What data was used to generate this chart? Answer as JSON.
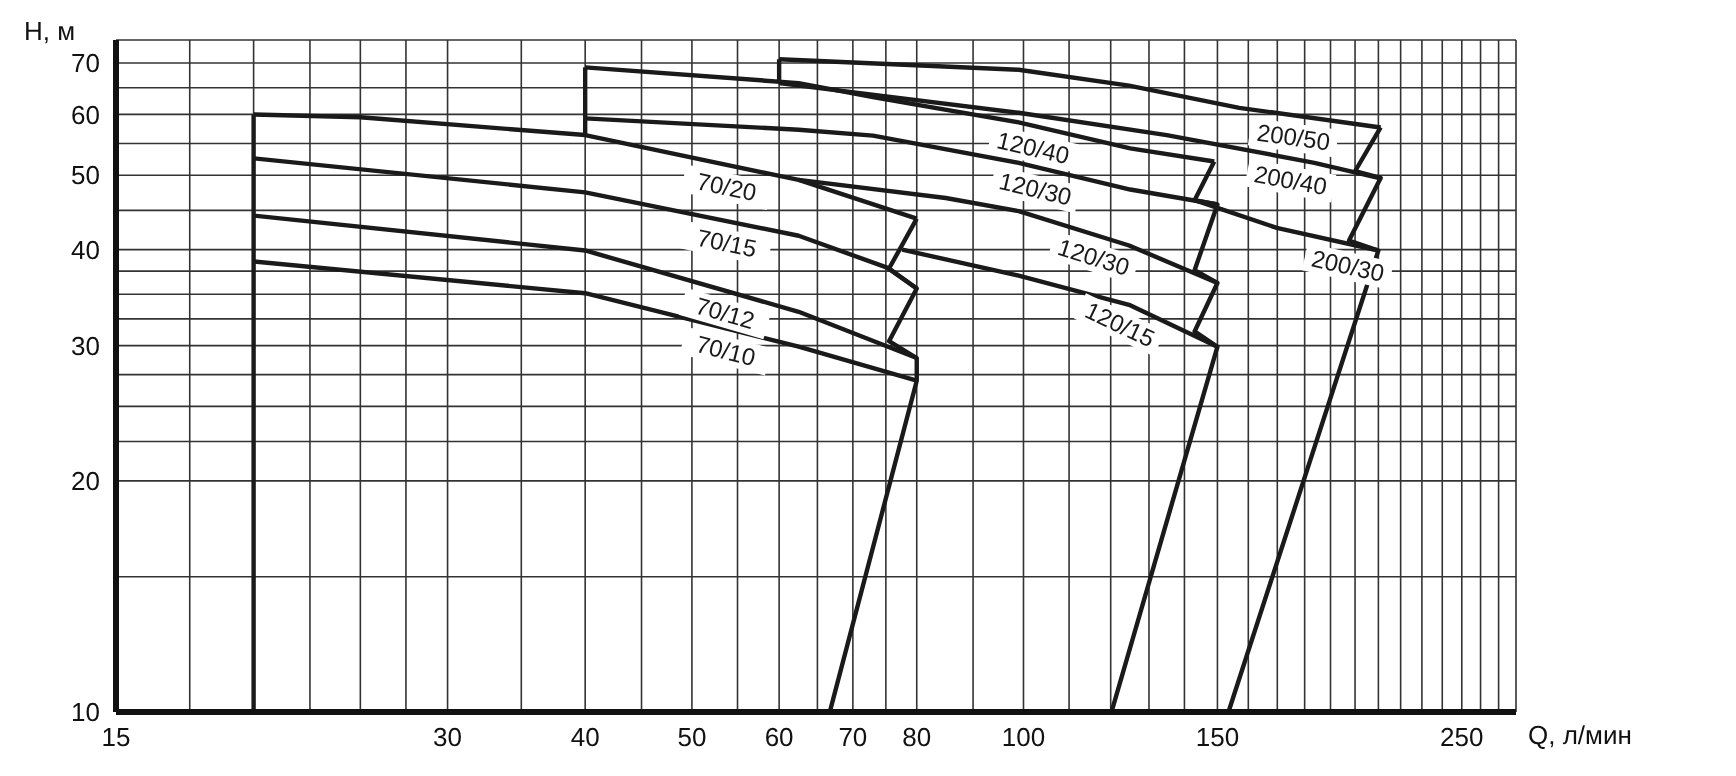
{
  "chart_data": {
    "type": "line",
    "xlabel": "Q, л/мин",
    "ylabel": "H, м",
    "log": "xy",
    "grid": true,
    "xlim": [
      15,
      280
    ],
    "ylim": [
      10,
      75
    ],
    "xticks": [
      15,
      {
        "value": 17.5,
        "label": null
      },
      {
        "value": 20,
        "label": null
      },
      {
        "value": 22.5,
        "label": null
      },
      {
        "value": 25,
        "label": null
      },
      {
        "value": 27.5,
        "label": null
      },
      30,
      {
        "value": 35,
        "label": null
      },
      40,
      {
        "value": 45,
        "label": null
      },
      50,
      {
        "value": 55,
        "label": null
      },
      60,
      {
        "value": 65,
        "label": null
      },
      70,
      {
        "value": 75,
        "label": null
      },
      80,
      {
        "value": 90,
        "label": null
      },
      100,
      {
        "value": 110,
        "label": null
      },
      {
        "value": 120,
        "label": null
      },
      {
        "value": 130,
        "label": null
      },
      {
        "value": 140,
        "label": null
      },
      150,
      {
        "value": 160,
        "label": null
      },
      {
        "value": 170,
        "label": null
      },
      {
        "value": 180,
        "label": null
      },
      {
        "value": 190,
        "label": null
      },
      {
        "value": 200,
        "label": null
      },
      {
        "value": 210,
        "label": null
      },
      {
        "value": 220,
        "label": null
      },
      {
        "value": 230,
        "label": null
      },
      {
        "value": 240,
        "label": null
      },
      250,
      {
        "value": 260,
        "label": null
      },
      {
        "value": 270,
        "label": null
      }
    ],
    "yticks": [
      10,
      {
        "value": 15,
        "label": null
      },
      20,
      {
        "value": 22.5,
        "label": null
      },
      {
        "value": 25,
        "label": null
      },
      {
        "value": 27.5,
        "label": null
      },
      30,
      {
        "value": 32.5,
        "label": null
      },
      {
        "value": 35,
        "label": null
      },
      {
        "value": 37.5,
        "label": null
      },
      40,
      {
        "value": 45,
        "label": null
      },
      50,
      {
        "value": 55,
        "label": null
      },
      60,
      {
        "value": 65,
        "label": null
      },
      70
    ],
    "series": [
      {
        "name": "70/20",
        "color": "#1a1a1a",
        "x": [
          20,
          25,
          40,
          62.5,
          80
        ],
        "values": [
          60,
          59.5,
          56.4,
          49.3,
          43.9
        ]
      },
      {
        "name": "70/15",
        "color": "#1a1a1a",
        "x": [
          20,
          40,
          62.5,
          75.2,
          80
        ],
        "values": [
          52.6,
          47.5,
          41.7,
          37.9,
          35.6
        ]
      },
      {
        "name": "70/12",
        "color": "#1a1a1a",
        "x": [
          20,
          40,
          62.5,
          80
        ],
        "values": [
          44.3,
          39.9,
          33.2,
          28.9
        ]
      },
      {
        "name": "70/10",
        "color": "#1a1a1a",
        "x": [
          20,
          40,
          62.5,
          80
        ],
        "values": [
          38.6,
          35.1,
          29.9,
          27.0
        ]
      },
      {
        "type": "line",
        "color": "#1a1a1a",
        "x": [
          66.7,
          80,
          80,
          75.5,
          80,
          75.5,
          80
        ],
        "values": [
          10,
          27.0,
          28.9,
          30.4,
          35.6,
          37.8,
          43.9
        ]
      },
      {
        "type": "line",
        "color": "#1a1a1a",
        "x": [
          20,
          20
        ],
        "values": [
          10,
          60
        ]
      },
      {
        "type": "line",
        "color": "#1a1a1a",
        "x": [
          40,
          40
        ],
        "values": [
          56.4,
          69.1
        ]
      },
      {
        "name": "120/40",
        "color": "#1a1a1a",
        "x": [
          40,
          62.5,
          73,
          99,
          125,
          149
        ],
        "values": [
          69.1,
          65.9,
          63.2,
          58.6,
          54.2,
          52.1
        ]
      },
      {
        "name": "120/30",
        "color": "#1a1a1a",
        "x": [
          40,
          62.5,
          73,
          99,
          125,
          150
        ],
        "values": [
          59.3,
          57.3,
          56.3,
          51.9,
          47.9,
          45.8
        ]
      },
      {
        "name": "120/30",
        "color": "#1a1a1a",
        "x": [
          62.5,
          85,
          99,
          124.7,
          150
        ],
        "values": [
          49.3,
          46.7,
          44.9,
          40.5,
          36.2
        ]
      },
      {
        "name": "120/15",
        "color": "#1a1a1a",
        "x": [
          77.6,
          99,
          124.7,
          150
        ],
        "values": [
          40.0,
          37.0,
          33.9,
          29.9
        ]
      },
      {
        "type": "line",
        "color": "#1a1a1a",
        "x": [
          120.2,
          150,
          143,
          150,
          143,
          150,
          143,
          149
        ],
        "values": [
          10,
          29.9,
          31.3,
          36.2,
          37.6,
          45.8,
          46.4,
          52.1
        ]
      },
      {
        "type": "line",
        "color": "#1a1a1a",
        "x": [
          60,
          60
        ],
        "values": [
          65.9,
          70.8
        ]
      },
      {
        "name": "200/50",
        "color": "#1a1a1a",
        "x": [
          60,
          99,
          124.7,
          157,
          211
        ],
        "values": [
          70.8,
          68.6,
          65.4,
          61.2,
          57.7
        ]
      },
      {
        "name": "200/40",
        "color": "#1a1a1a",
        "x": [
          60,
          99,
          134.9,
          183.7,
          210
        ],
        "values": [
          65.9,
          60.3,
          56.4,
          51.9,
          49.6
        ]
      },
      {
        "name": "200/30",
        "color": "#1a1a1a",
        "x": [
          143,
          169.8,
          210
        ],
        "values": [
          46.4,
          42.7,
          39.9
        ]
      },
      {
        "type": "line",
        "color": "#1a1a1a",
        "x": [
          153.5,
          210,
          197.5,
          211,
          200,
          211
        ],
        "values": [
          10,
          39.9,
          41.1,
          49.6,
          50.6,
          57.7
        ]
      }
    ]
  }
}
